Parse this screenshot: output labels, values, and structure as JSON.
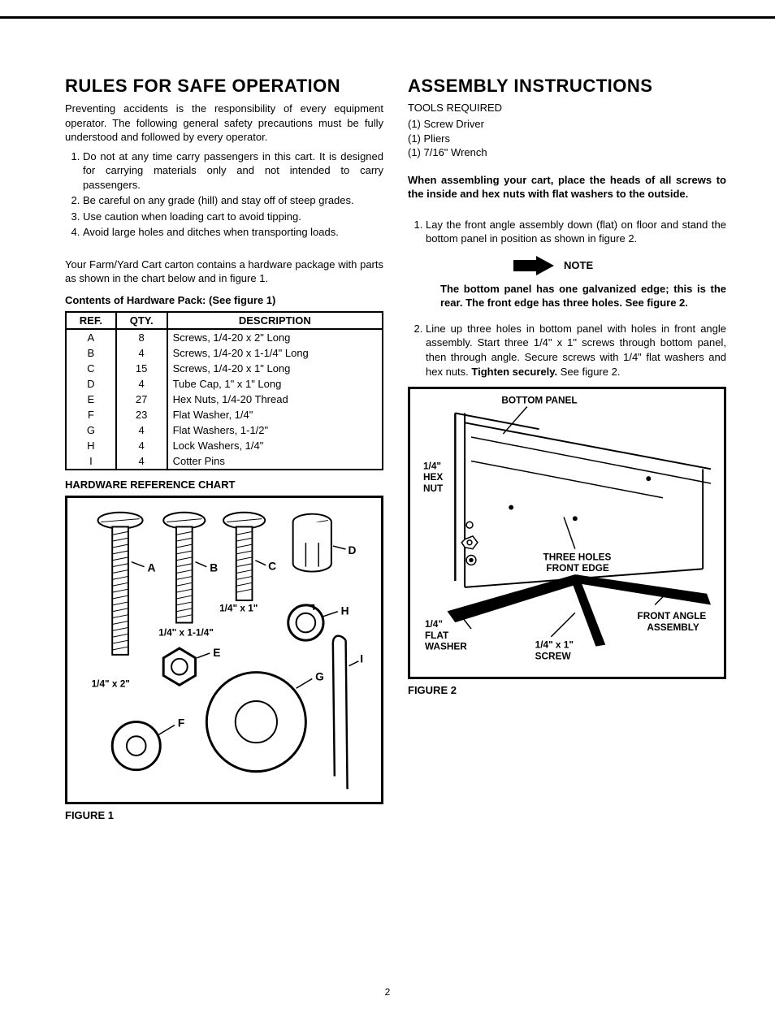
{
  "left": {
    "title": "RULES FOR SAFE OPERATION",
    "intro": "Preventing accidents is the responsibility of every equipment operator. The following general safety precautions must be fully understood and followed by every operator.",
    "rules": [
      "Do not at any time carry passengers in this cart. It is designed for carrying materials only and not intended to carry passengers.",
      "Be careful on any grade (hill) and stay off of steep grades.",
      "Use caution when loading cart to avoid tipping.",
      "Avoid large holes and ditches when transporting loads."
    ],
    "para2": "Your Farm/Yard Cart carton contains a hardware package with parts as shown in the chart below and in figure 1.",
    "contents_heading": "Contents of Hardware Pack: (See figure 1)",
    "table": {
      "headers": [
        "REF.",
        "QTY.",
        "DESCRIPTION"
      ],
      "rows": [
        [
          "A",
          "8",
          "Screws, 1/4-20 x 2\" Long"
        ],
        [
          "B",
          "4",
          "Screws, 1/4-20 x 1-1/4\" Long"
        ],
        [
          "C",
          "15",
          "Screws, 1/4-20 x 1\" Long"
        ],
        [
          "D",
          "4",
          "Tube Cap, 1\" x 1\" Long"
        ],
        [
          "E",
          "27",
          "Hex Nuts, 1/4-20 Thread"
        ],
        [
          "F",
          "23",
          "Flat Washer, 1/4\""
        ],
        [
          "G",
          "4",
          "Flat Washers, 1-1/2\""
        ],
        [
          "H",
          "4",
          "Lock Washers, 1/4\""
        ],
        [
          "I",
          "4",
          "Cotter Pins"
        ]
      ]
    },
    "chart_heading": "HARDWARE REFERENCE CHART",
    "fig1": {
      "caption": "FIGURE 1",
      "labels": {
        "A": "A",
        "B": "B",
        "C": "C",
        "D": "D",
        "E": "E",
        "F": "F",
        "G": "G",
        "H": "H",
        "I": "I",
        "s1": "1/4\" x 2\"",
        "s2": "1/4\" x 1-1/4\"",
        "s3": "1/4\" x 1\""
      }
    }
  },
  "right": {
    "title": "ASSEMBLY INSTRUCTIONS",
    "tools_heading": "TOOLS REQUIRED",
    "tools": [
      "(1)   Screw Driver",
      "(1)   Pliers",
      "(1)   7/16\" Wrench"
    ],
    "bold_para": "When assembling your cart, place the heads of all screws to the inside and hex nuts with flat washers to the outside.",
    "steps": [
      "Lay the front angle assembly down (flat) on floor and stand the bottom panel in position as shown in figure 2."
    ],
    "note_label": "NOTE",
    "note_body": "The bottom panel has one galvanized edge; this is the rear. The front edge has three holes. See figure 2.",
    "step2_pre": "Line up three holes in bottom panel with holes in front angle assembly. Start three 1/4\" x 1\" screws through bottom panel, then through angle. Secure screws with 1/4\" flat washers and hex nuts. ",
    "step2_bold": "Tighten securely.",
    "step2_post": " See figure 2.",
    "fig2": {
      "caption": "FIGURE 2",
      "labels": {
        "bottom_panel": "BOTTOM PANEL",
        "hex_nut": "1/4\"\nHEX\nNUT",
        "three_holes": "THREE HOLES\nFRONT EDGE",
        "front_angle": "FRONT ANGLE\nASSEMBLY",
        "flat_washer": "1/4\"\nFLAT\nWASHER",
        "screw": "1/4\" x 1\"\nSCREW"
      }
    }
  },
  "page_number": "2",
  "colors": {
    "text": "#000000",
    "bg": "#ffffff",
    "border": "#000000"
  }
}
